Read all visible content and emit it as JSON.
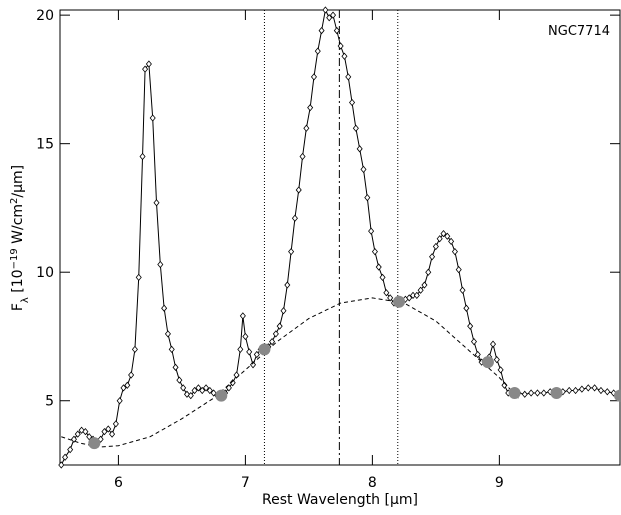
{
  "chart_data": {
    "type": "line",
    "annotation": "NGC7714",
    "x_label": "Rest Wavelength [μm]",
    "y_label": [
      "F",
      "λ",
      " [10",
      "−19",
      " W/cm",
      "2",
      "/μm]"
    ],
    "xlim": [
      5.54,
      9.95
    ],
    "ylim": [
      2.5,
      20.2
    ],
    "xticks": [
      6,
      7,
      8,
      9
    ],
    "yticks": [
      5,
      10,
      15,
      20
    ],
    "dotted_lines": [
      7.15,
      8.2
    ],
    "dashdot_lines": [
      7.74
    ],
    "series": [
      {
        "color": "#000000",
        "marker": "diamond",
        "dash": false,
        "x": [
          5.55,
          5.58,
          5.62,
          5.65,
          5.68,
          5.71,
          5.74,
          5.77,
          5.8,
          5.83,
          5.86,
          5.89,
          5.92,
          5.95,
          5.98,
          6.01,
          6.04,
          6.07,
          6.1,
          6.13,
          6.16,
          6.19,
          6.21,
          6.24,
          6.27,
          6.3,
          6.33,
          6.36,
          6.39,
          6.42,
          6.45,
          6.48,
          6.51,
          6.54,
          6.57,
          6.6,
          6.63,
          6.66,
          6.69,
          6.72,
          6.75,
          6.78,
          6.81,
          6.84,
          6.87,
          6.9,
          6.93,
          6.96,
          6.98,
          7.0,
          7.03,
          7.06,
          7.09,
          7.12,
          7.15,
          7.18,
          7.21,
          7.24,
          7.27,
          7.3,
          7.33,
          7.36,
          7.39,
          7.42,
          7.45,
          7.48,
          7.51,
          7.54,
          7.57,
          7.6,
          7.63,
          7.66,
          7.69,
          7.72,
          7.75,
          7.78,
          7.81,
          7.84,
          7.87,
          7.9,
          7.93,
          7.96,
          7.99,
          8.02,
          8.05,
          8.08,
          8.11,
          8.14,
          8.17,
          8.2,
          8.23,
          8.26,
          8.29,
          8.32,
          8.35,
          8.38,
          8.41,
          8.44,
          8.47,
          8.5,
          8.53,
          8.56,
          8.59,
          8.62,
          8.65,
          8.68,
          8.71,
          8.74,
          8.77,
          8.8,
          8.83,
          8.86,
          8.89,
          8.92,
          8.95,
          8.98,
          9.01,
          9.04,
          9.07,
          9.1,
          9.15,
          9.2,
          9.25,
          9.3,
          9.35,
          9.4,
          9.45,
          9.5,
          9.55,
          9.6,
          9.65,
          9.7,
          9.75,
          9.8,
          9.85,
          9.9,
          9.95
        ],
        "y": [
          2.5,
          2.8,
          3.1,
          3.5,
          3.7,
          3.85,
          3.8,
          3.6,
          3.5,
          3.4,
          3.5,
          3.8,
          3.9,
          3.7,
          4.1,
          5.0,
          5.5,
          5.6,
          6.0,
          7.0,
          9.8,
          14.5,
          17.9,
          18.1,
          16.0,
          12.7,
          10.3,
          8.6,
          7.6,
          7.0,
          6.3,
          5.8,
          5.5,
          5.25,
          5.2,
          5.4,
          5.5,
          5.4,
          5.5,
          5.4,
          5.3,
          5.2,
          5.2,
          5.3,
          5.5,
          5.7,
          6.0,
          7.0,
          8.3,
          7.5,
          6.9,
          6.4,
          6.8,
          7.0,
          7.0,
          7.1,
          7.3,
          7.6,
          7.9,
          8.5,
          9.5,
          10.8,
          12.1,
          13.2,
          14.5,
          15.6,
          16.4,
          17.6,
          18.6,
          19.4,
          20.2,
          19.9,
          20.0,
          19.4,
          18.8,
          18.4,
          17.6,
          16.6,
          15.6,
          14.8,
          14.0,
          12.9,
          11.6,
          10.8,
          10.2,
          9.8,
          9.2,
          9.0,
          8.8,
          8.9,
          8.9,
          8.95,
          9.0,
          9.1,
          9.1,
          9.3,
          9.5,
          10.0,
          10.6,
          11.0,
          11.3,
          11.5,
          11.4,
          11.2,
          10.8,
          10.1,
          9.3,
          8.6,
          7.9,
          7.3,
          6.8,
          6.5,
          6.5,
          6.7,
          7.2,
          6.6,
          6.2,
          5.6,
          5.3,
          5.3,
          5.3,
          5.25,
          5.3,
          5.3,
          5.3,
          5.35,
          5.3,
          5.35,
          5.4,
          5.4,
          5.45,
          5.5,
          5.5,
          5.4,
          5.35,
          5.3,
          5.3
        ]
      },
      {
        "color": "#000000",
        "marker": "none",
        "dash": true,
        "x": [
          5.55,
          5.7,
          5.85,
          6.0,
          6.25,
          6.5,
          6.75,
          7.0,
          7.25,
          7.5,
          7.75,
          8.0,
          8.25,
          8.5,
          8.75,
          9.0,
          9.15
        ],
        "y": [
          3.6,
          3.35,
          3.2,
          3.25,
          3.6,
          4.3,
          5.1,
          6.2,
          7.3,
          8.2,
          8.8,
          9.0,
          8.8,
          8.1,
          7.0,
          5.9,
          5.1
        ]
      },
      {
        "color": "#888888",
        "marker": "circle",
        "dash": false,
        "x": [
          5.81,
          6.81,
          7.15,
          8.21,
          8.91,
          9.12,
          9.45,
          9.95
        ],
        "y": [
          3.35,
          5.2,
          7.0,
          8.85,
          6.5,
          5.3,
          5.3,
          5.2
        ]
      }
    ]
  }
}
